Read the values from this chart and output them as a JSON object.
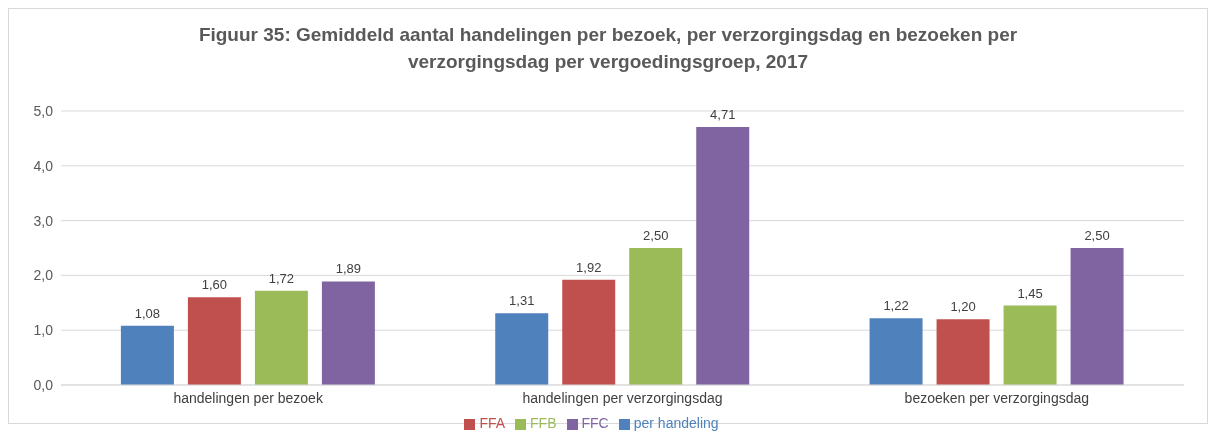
{
  "chart_data": {
    "type": "bar",
    "title": "Figuur 35: Gemiddeld aantal handelingen per bezoek, per verzorgingsdag en bezoeken per verzorgingsdag per vergoedingsgroep, 2017",
    "categories": [
      "handelingen per bezoek",
      "handelingen per verzorgingsdag",
      "bezoeken per verzorgingsdag"
    ],
    "series": [
      {
        "name": "per handeling",
        "color": "#4f81bd",
        "values": [
          1.08,
          1.31,
          1.22
        ],
        "value_labels": [
          "1,08",
          "1,31",
          "1,22"
        ]
      },
      {
        "name": "FFA",
        "color": "#c0504d",
        "values": [
          1.6,
          1.92,
          1.2
        ],
        "value_labels": [
          "1,60",
          "1,92",
          "1,20"
        ]
      },
      {
        "name": "FFB",
        "color": "#9bbb59",
        "values": [
          1.72,
          2.5,
          1.45
        ],
        "value_labels": [
          "1,72",
          "2,50",
          "1,45"
        ]
      },
      {
        "name": "FFC",
        "color": "#8064a2",
        "values": [
          1.89,
          4.71,
          2.5
        ],
        "value_labels": [
          "1,89",
          "4,71",
          "2,50"
        ]
      }
    ],
    "ylim": [
      0,
      5
    ],
    "yticks": [
      {
        "value": 0,
        "label": "0,0"
      },
      {
        "value": 1,
        "label": "1,0"
      },
      {
        "value": 2,
        "label": "2,0"
      },
      {
        "value": 3,
        "label": "3,0"
      },
      {
        "value": 4,
        "label": "4,0"
      },
      {
        "value": 5,
        "label": "5,0"
      }
    ],
    "grid": "y",
    "legend": "bottom"
  }
}
